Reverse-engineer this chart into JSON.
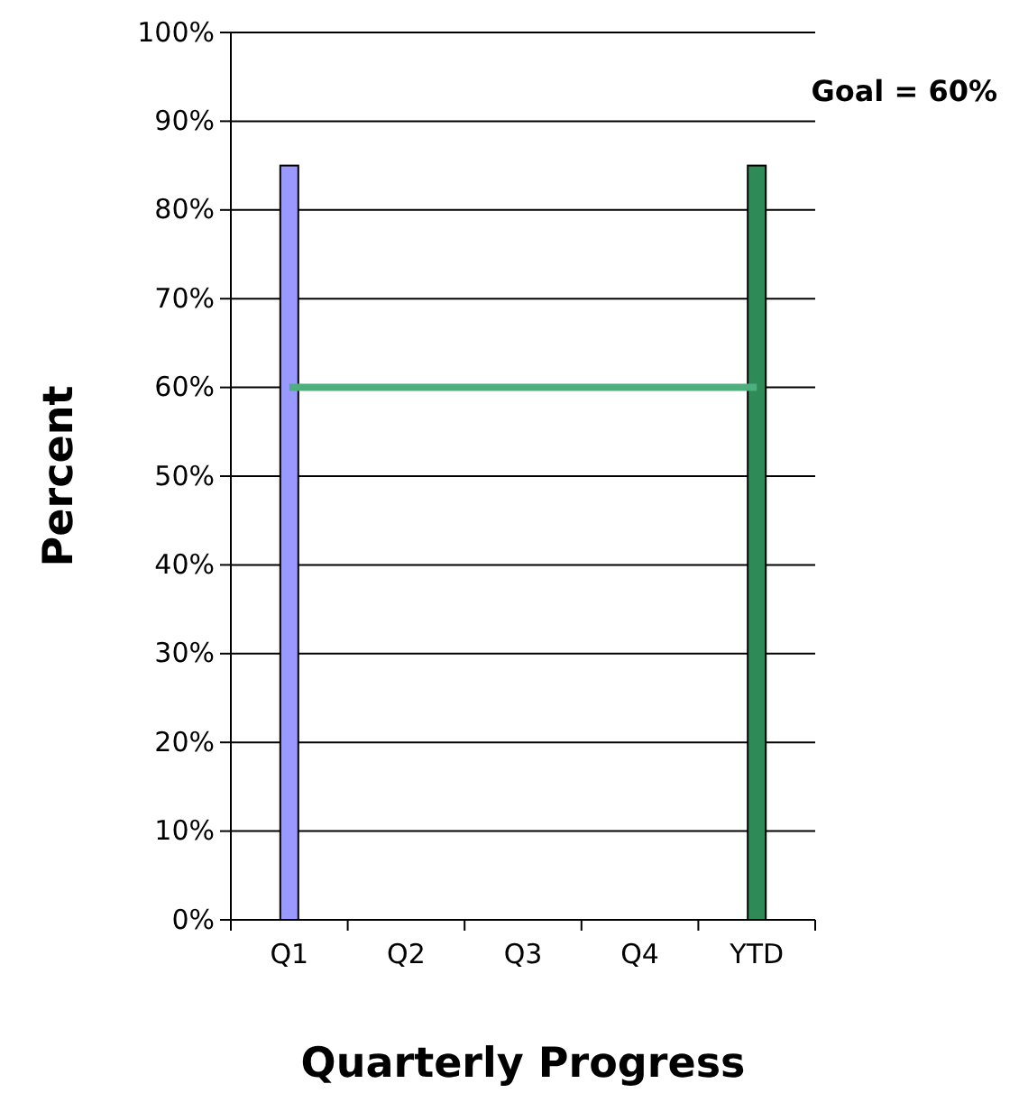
{
  "chart_data": {
    "type": "bar",
    "xlabel": "Quarterly Progress",
    "ylabel": "Percent",
    "categories": [
      "Q1",
      "Q2",
      "Q3",
      "Q4",
      "YTD"
    ],
    "series": [
      {
        "values": [
          85,
          null,
          null,
          null,
          85
        ],
        "colors": [
          "#9999ff",
          null,
          null,
          null,
          "#2e8b57"
        ]
      },
      {
        "type": "line",
        "color": "#4caf7d",
        "values": [
          60,
          60,
          60,
          60,
          60
        ],
        "marker": "none"
      }
    ],
    "ylim": [
      0,
      100
    ],
    "yticks": [
      {
        "value": 0,
        "label": "0%"
      },
      {
        "value": 10,
        "label": "10%"
      },
      {
        "value": 20,
        "label": "20%"
      },
      {
        "value": 30,
        "label": "30%"
      },
      {
        "value": 40,
        "label": "40%"
      },
      {
        "value": 50,
        "label": "50%"
      },
      {
        "value": 60,
        "label": "60%"
      },
      {
        "value": 70,
        "label": "70%"
      },
      {
        "value": 80,
        "label": "80%"
      },
      {
        "value": 90,
        "label": "90%"
      },
      {
        "value": 100,
        "label": "100%"
      }
    ],
    "grid": "y",
    "annotations": [
      "Goal = 60%"
    ]
  }
}
